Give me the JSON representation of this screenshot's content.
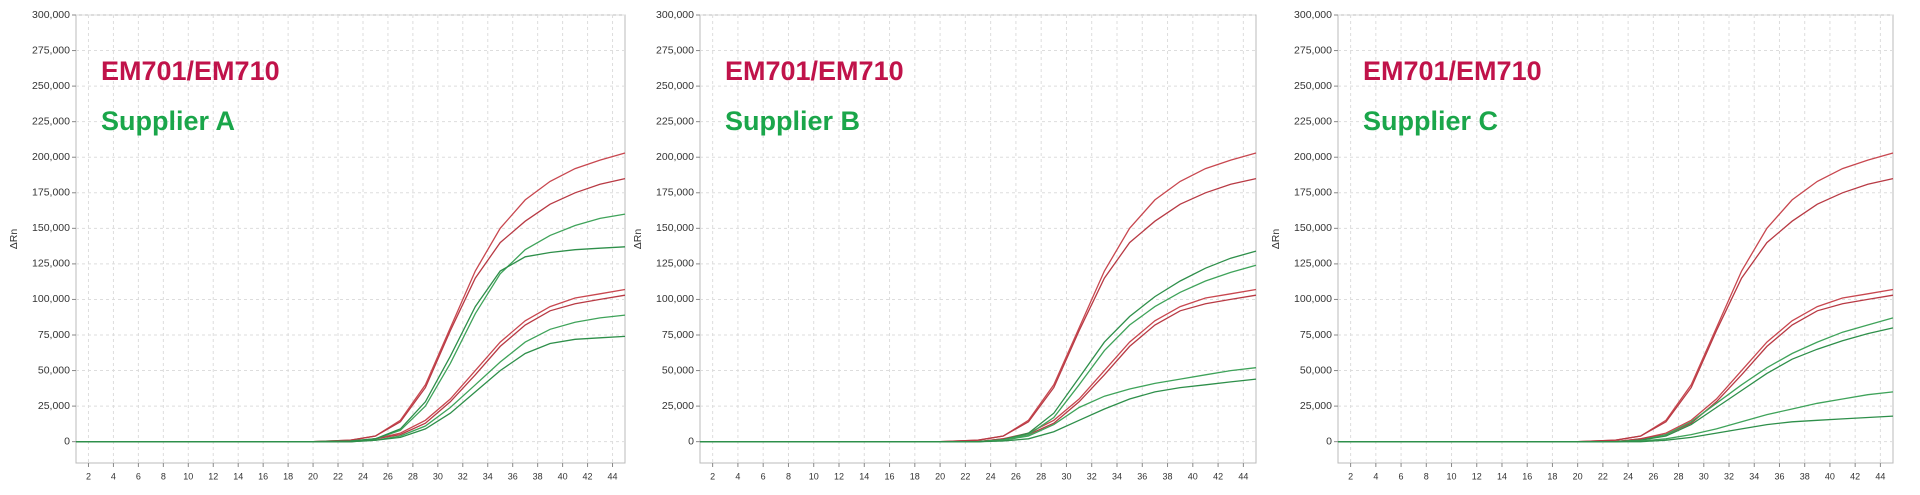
{
  "chart_data": [
    {
      "type": "line",
      "annotations": [
        "EM701/EM710",
        "Supplier A"
      ],
      "annotation_colors": [
        "#c0134a",
        "#1aa64a"
      ],
      "ylabel": "ΔRn",
      "x": [
        1,
        5,
        10,
        15,
        20,
        23,
        25,
        27,
        29,
        31,
        33,
        35,
        37,
        39,
        41,
        43,
        45
      ],
      "xlim": [
        1,
        45
      ],
      "xticks": [
        2,
        4,
        6,
        8,
        10,
        12,
        14,
        16,
        18,
        20,
        22,
        24,
        26,
        28,
        30,
        32,
        34,
        36,
        38,
        40,
        42,
        44
      ],
      "ylim": [
        -15000,
        300000
      ],
      "yticks": [
        {
          "value": 0,
          "label": "0"
        },
        {
          "value": 25000,
          "label": "25,000"
        },
        {
          "value": 50000,
          "label": "50,000"
        },
        {
          "value": 75000,
          "label": "75,000"
        },
        {
          "value": 100000,
          "label": "100,000"
        },
        {
          "value": 125000,
          "label": "125,000"
        },
        {
          "value": 150000,
          "label": "150,000"
        },
        {
          "value": 175000,
          "label": "175,000"
        },
        {
          "value": 200000,
          "label": "200,000"
        },
        {
          "value": 225000,
          "label": "225,000"
        },
        {
          "value": 250000,
          "label": "250,000"
        },
        {
          "value": 275000,
          "label": "275,000"
        },
        {
          "value": 300000,
          "label": "300,000"
        }
      ],
      "grid": true,
      "series": [
        {
          "color": "#c8474f",
          "values": [
            0,
            0,
            0,
            0,
            0,
            1000,
            4000,
            15000,
            40000,
            80000,
            120000,
            150000,
            170000,
            183000,
            192000,
            198000,
            203000
          ]
        },
        {
          "color": "#b83a44",
          "values": [
            0,
            0,
            0,
            0,
            0,
            1000,
            4000,
            14000,
            38000,
            78000,
            115000,
            140000,
            155000,
            167000,
            175000,
            181000,
            185000
          ]
        },
        {
          "color": "#c8474f",
          "values": [
            0,
            0,
            0,
            0,
            0,
            0,
            2000,
            6000,
            15000,
            30000,
            50000,
            70000,
            85000,
            95000,
            101000,
            104000,
            107000
          ]
        },
        {
          "color": "#b83a44",
          "values": [
            0,
            0,
            0,
            0,
            0,
            0,
            2000,
            5000,
            13000,
            28000,
            47000,
            67000,
            82000,
            92000,
            97000,
            100000,
            103000
          ]
        },
        {
          "color": "#3fa35a",
          "values": [
            0,
            0,
            0,
            0,
            0,
            500,
            2000,
            8000,
            25000,
            55000,
            90000,
            118000,
            135000,
            145000,
            152000,
            157000,
            160000
          ]
        },
        {
          "color": "#2e8f4a",
          "values": [
            0,
            0,
            0,
            0,
            0,
            500,
            2000,
            9000,
            28000,
            60000,
            95000,
            120000,
            130000,
            133000,
            135000,
            136000,
            137000
          ]
        },
        {
          "color": "#3fa35a",
          "values": [
            0,
            0,
            0,
            0,
            0,
            0,
            1000,
            4000,
            11000,
            24000,
            40000,
            56000,
            70000,
            79000,
            84000,
            87000,
            89000
          ]
        },
        {
          "color": "#2e8f4a",
          "values": [
            0,
            0,
            0,
            0,
            0,
            0,
            1000,
            3000,
            9000,
            20000,
            35000,
            50000,
            62000,
            69000,
            72000,
            73000,
            74000
          ]
        }
      ]
    },
    {
      "type": "line",
      "annotations": [
        "EM701/EM710",
        "Supplier B"
      ],
      "annotation_colors": [
        "#c0134a",
        "#1aa64a"
      ],
      "ylabel": "ΔRn",
      "x": [
        1,
        5,
        10,
        15,
        20,
        23,
        25,
        27,
        29,
        31,
        33,
        35,
        37,
        39,
        41,
        43,
        45
      ],
      "xlim": [
        1,
        45
      ],
      "xticks": [
        2,
        4,
        6,
        8,
        10,
        12,
        14,
        16,
        18,
        20,
        22,
        24,
        26,
        28,
        30,
        32,
        34,
        36,
        38,
        40,
        42,
        44
      ],
      "ylim": [
        -15000,
        300000
      ],
      "yticks": [
        {
          "value": 0,
          "label": "0"
        },
        {
          "value": 25000,
          "label": "25,000"
        },
        {
          "value": 50000,
          "label": "50,000"
        },
        {
          "value": 75000,
          "label": "75,000"
        },
        {
          "value": 100000,
          "label": "100,000"
        },
        {
          "value": 125000,
          "label": "125,000"
        },
        {
          "value": 150000,
          "label": "150,000"
        },
        {
          "value": 175000,
          "label": "175,000"
        },
        {
          "value": 200000,
          "label": "200,000"
        },
        {
          "value": 225000,
          "label": "225,000"
        },
        {
          "value": 250000,
          "label": "250,000"
        },
        {
          "value": 275000,
          "label": "275,000"
        },
        {
          "value": 300000,
          "label": "300,000"
        }
      ],
      "grid": true,
      "series": [
        {
          "color": "#c8474f",
          "values": [
            0,
            0,
            0,
            0,
            0,
            1000,
            4000,
            15000,
            40000,
            80000,
            120000,
            150000,
            170000,
            183000,
            192000,
            198000,
            203000
          ]
        },
        {
          "color": "#b83a44",
          "values": [
            0,
            0,
            0,
            0,
            0,
            1000,
            4000,
            14000,
            38000,
            78000,
            115000,
            140000,
            155000,
            167000,
            175000,
            181000,
            185000
          ]
        },
        {
          "color": "#c8474f",
          "values": [
            0,
            0,
            0,
            0,
            0,
            0,
            2000,
            6000,
            15000,
            30000,
            50000,
            70000,
            85000,
            95000,
            101000,
            104000,
            107000
          ]
        },
        {
          "color": "#b83a44",
          "values": [
            0,
            0,
            0,
            0,
            0,
            0,
            2000,
            5000,
            13000,
            28000,
            47000,
            67000,
            82000,
            92000,
            97000,
            100000,
            103000
          ]
        },
        {
          "color": "#2e8f4a",
          "values": [
            0,
            0,
            0,
            0,
            0,
            0,
            1500,
            6000,
            20000,
            45000,
            70000,
            88000,
            102000,
            113000,
            122000,
            129000,
            134000
          ]
        },
        {
          "color": "#3fa35a",
          "values": [
            0,
            0,
            0,
            0,
            0,
            0,
            1000,
            5000,
            17000,
            40000,
            64000,
            82000,
            95000,
            105000,
            113000,
            119000,
            124000
          ]
        },
        {
          "color": "#3fa35a",
          "values": [
            0,
            0,
            0,
            0,
            0,
            0,
            1000,
            4000,
            12000,
            24000,
            32000,
            37000,
            41000,
            44000,
            47000,
            50000,
            52000
          ]
        },
        {
          "color": "#2e8f4a",
          "values": [
            0,
            0,
            0,
            0,
            0,
            0,
            500,
            2000,
            7000,
            15000,
            23000,
            30000,
            35000,
            38000,
            40000,
            42000,
            44000
          ]
        }
      ]
    },
    {
      "type": "line",
      "annotations": [
        "EM701/EM710",
        "Supplier C"
      ],
      "annotation_colors": [
        "#c0134a",
        "#1aa64a"
      ],
      "ylabel": "ΔRn",
      "x": [
        1,
        5,
        10,
        15,
        20,
        23,
        25,
        27,
        29,
        31,
        33,
        35,
        37,
        39,
        41,
        43,
        45
      ],
      "xlim": [
        1,
        45
      ],
      "xticks": [
        2,
        4,
        6,
        8,
        10,
        12,
        14,
        16,
        18,
        20,
        22,
        24,
        26,
        28,
        30,
        32,
        34,
        36,
        38,
        40,
        42,
        44
      ],
      "ylim": [
        -15000,
        300000
      ],
      "yticks": [
        {
          "value": 0,
          "label": "0"
        },
        {
          "value": 25000,
          "label": "25,000"
        },
        {
          "value": 50000,
          "label": "50,000"
        },
        {
          "value": 75000,
          "label": "75,000"
        },
        {
          "value": 100000,
          "label": "100,000"
        },
        {
          "value": 125000,
          "label": "125,000"
        },
        {
          "value": 150000,
          "label": "150,000"
        },
        {
          "value": 175000,
          "label": "175,000"
        },
        {
          "value": 200000,
          "label": "200,000"
        },
        {
          "value": 225000,
          "label": "225,000"
        },
        {
          "value": 250000,
          "label": "250,000"
        },
        {
          "value": 275000,
          "label": "275,000"
        },
        {
          "value": 300000,
          "label": "300,000"
        }
      ],
      "grid": true,
      "series": [
        {
          "color": "#c8474f",
          "values": [
            0,
            0,
            0,
            0,
            0,
            1000,
            4000,
            15000,
            40000,
            80000,
            120000,
            150000,
            170000,
            183000,
            192000,
            198000,
            203000
          ]
        },
        {
          "color": "#b83a44",
          "values": [
            0,
            0,
            0,
            0,
            0,
            1000,
            4000,
            14000,
            38000,
            78000,
            115000,
            140000,
            155000,
            167000,
            175000,
            181000,
            185000
          ]
        },
        {
          "color": "#c8474f",
          "values": [
            0,
            0,
            0,
            0,
            0,
            0,
            2000,
            6000,
            15000,
            30000,
            50000,
            70000,
            85000,
            95000,
            101000,
            104000,
            107000
          ]
        },
        {
          "color": "#b83a44",
          "values": [
            0,
            0,
            0,
            0,
            0,
            0,
            2000,
            5000,
            13000,
            28000,
            47000,
            67000,
            82000,
            92000,
            97000,
            100000,
            103000
          ]
        },
        {
          "color": "#3fa35a",
          "values": [
            0,
            0,
            0,
            0,
            0,
            0,
            1000,
            5000,
            14000,
            27000,
            40000,
            52000,
            62000,
            70000,
            77000,
            82000,
            87000
          ]
        },
        {
          "color": "#2e8f4a",
          "values": [
            0,
            0,
            0,
            0,
            0,
            0,
            1000,
            4000,
            12000,
            24000,
            36000,
            48000,
            58000,
            65000,
            71000,
            76000,
            80000
          ]
        },
        {
          "color": "#3fa35a",
          "values": [
            0,
            0,
            0,
            0,
            0,
            0,
            500,
            2000,
            5000,
            9000,
            14000,
            19000,
            23000,
            27000,
            30000,
            33000,
            35000
          ]
        },
        {
          "color": "#2e8f4a",
          "values": [
            0,
            0,
            0,
            0,
            0,
            0,
            0,
            1000,
            3000,
            6000,
            9000,
            12000,
            14000,
            15000,
            16000,
            17000,
            18000
          ]
        }
      ]
    }
  ]
}
